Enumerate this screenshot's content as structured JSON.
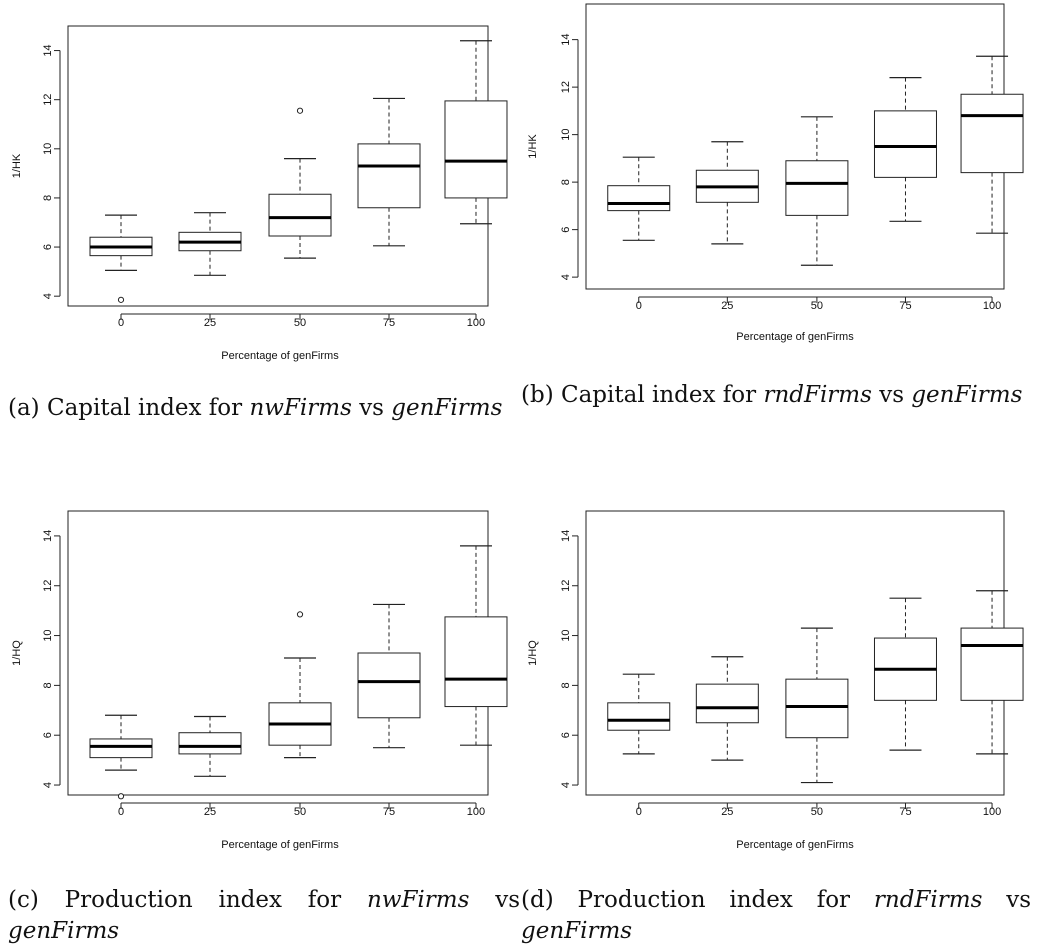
{
  "charts": [
    {
      "type": "box",
      "caption": {
        "label": "(a)",
        "text1": "Capital index for",
        "italic1": "nwFirms",
        "text2": "vs",
        "italic2": "genFirms"
      },
      "chart_data": {
        "type": "box",
        "xlabel": "Percentage of genFirms",
        "ylabel": "1/HK",
        "ylim": [
          3.6,
          15
        ],
        "yticks": [
          4,
          6,
          8,
          10,
          12,
          14
        ],
        "categories": [
          "0",
          "25",
          "50",
          "75",
          "100"
        ],
        "boxes": [
          {
            "category": "0",
            "min": 5.05,
            "q1": 5.65,
            "median": 6.0,
            "q3": 6.4,
            "max": 7.3,
            "outliers": [
              3.85
            ]
          },
          {
            "category": "25",
            "min": 4.85,
            "q1": 5.85,
            "median": 6.2,
            "q3": 6.6,
            "max": 7.4,
            "outliers": []
          },
          {
            "category": "50",
            "min": 5.55,
            "q1": 6.45,
            "median": 7.2,
            "q3": 8.15,
            "max": 9.6,
            "outliers": [
              11.55
            ]
          },
          {
            "category": "75",
            "min": 6.05,
            "q1": 7.6,
            "median": 9.3,
            "q3": 10.2,
            "max": 12.05,
            "outliers": []
          },
          {
            "category": "100",
            "min": 6.95,
            "q1": 8.0,
            "median": 9.5,
            "q3": 11.95,
            "max": 14.4,
            "outliers": []
          }
        ]
      }
    },
    {
      "type": "box",
      "caption": {
        "label": "(b)",
        "text1": "Capital index for",
        "italic1": "rndFirms",
        "text2": "vs",
        "italic2": "genFirms"
      },
      "chart_data": {
        "type": "box",
        "xlabel": "Percentage of genFirms",
        "ylabel": "1/HK",
        "ylim": [
          3.5,
          15.5
        ],
        "yticks": [
          4,
          6,
          8,
          10,
          12,
          14
        ],
        "categories": [
          "0",
          "25",
          "50",
          "75",
          "100"
        ],
        "boxes": [
          {
            "category": "0",
            "min": 5.55,
            "q1": 6.8,
            "median": 7.1,
            "q3": 7.85,
            "max": 9.05,
            "outliers": []
          },
          {
            "category": "25",
            "min": 5.4,
            "q1": 7.15,
            "median": 7.8,
            "q3": 8.5,
            "max": 9.7,
            "outliers": []
          },
          {
            "category": "50",
            "min": 4.5,
            "q1": 6.6,
            "median": 7.95,
            "q3": 8.9,
            "max": 10.75,
            "outliers": []
          },
          {
            "category": "75",
            "min": 6.35,
            "q1": 8.2,
            "median": 9.5,
            "q3": 11.0,
            "max": 12.4,
            "outliers": []
          },
          {
            "category": "100",
            "min": 5.85,
            "q1": 8.4,
            "median": 10.8,
            "q3": 11.7,
            "max": 13.3,
            "outliers": []
          }
        ]
      }
    },
    {
      "type": "box",
      "caption": {
        "label": "(c)",
        "text1": "Production index for",
        "italic1": "nwFirms",
        "text2": "vs",
        "italic2": "genFirms"
      },
      "chart_data": {
        "type": "box",
        "xlabel": "Percentage of genFirms",
        "ylabel": "1/HQ",
        "ylim": [
          3.6,
          15
        ],
        "yticks": [
          4,
          6,
          8,
          10,
          12,
          14
        ],
        "categories": [
          "0",
          "25",
          "50",
          "75",
          "100"
        ],
        "boxes": [
          {
            "category": "0",
            "min": 4.6,
            "q1": 5.1,
            "median": 5.55,
            "q3": 5.85,
            "max": 6.8,
            "outliers": [
              3.55
            ]
          },
          {
            "category": "25",
            "min": 4.35,
            "q1": 5.25,
            "median": 5.55,
            "q3": 6.1,
            "max": 6.75,
            "outliers": []
          },
          {
            "category": "50",
            "min": 5.1,
            "q1": 5.6,
            "median": 6.45,
            "q3": 7.3,
            "max": 9.1,
            "outliers": [
              10.85
            ]
          },
          {
            "category": "75",
            "min": 5.5,
            "q1": 6.7,
            "median": 8.15,
            "q3": 9.3,
            "max": 11.25,
            "outliers": []
          },
          {
            "category": "100",
            "min": 5.6,
            "q1": 7.15,
            "median": 8.25,
            "q3": 10.75,
            "max": 13.6,
            "outliers": []
          }
        ]
      }
    },
    {
      "type": "box",
      "caption": {
        "label": "(d)",
        "text1": "Production index for",
        "italic1": "rndFirms",
        "text2": "vs",
        "italic2": "genFirms"
      },
      "chart_data": {
        "type": "box",
        "xlabel": "Percentage of genFirms",
        "ylabel": "1/HQ",
        "ylim": [
          3.6,
          15
        ],
        "yticks": [
          4,
          6,
          8,
          10,
          12,
          14
        ],
        "categories": [
          "0",
          "25",
          "50",
          "75",
          "100"
        ],
        "boxes": [
          {
            "category": "0",
            "min": 5.25,
            "q1": 6.2,
            "median": 6.6,
            "q3": 7.3,
            "max": 8.45,
            "outliers": []
          },
          {
            "category": "25",
            "min": 5.0,
            "q1": 6.5,
            "median": 7.1,
            "q3": 8.05,
            "max": 9.15,
            "outliers": []
          },
          {
            "category": "50",
            "min": 4.1,
            "q1": 5.9,
            "median": 7.15,
            "q3": 8.25,
            "max": 10.3,
            "outliers": []
          },
          {
            "category": "75",
            "min": 5.4,
            "q1": 7.4,
            "median": 8.65,
            "q3": 9.9,
            "max": 11.5,
            "outliers": []
          },
          {
            "category": "100",
            "min": 5.25,
            "q1": 7.4,
            "median": 9.6,
            "q3": 10.3,
            "max": 11.8,
            "outliers": []
          }
        ]
      }
    }
  ]
}
